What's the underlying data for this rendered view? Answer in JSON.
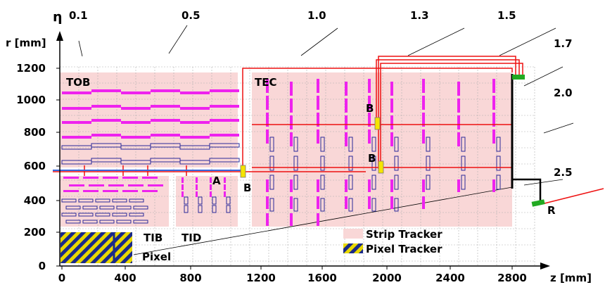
{
  "axes": {
    "eta_symbol": "η",
    "r_label": "r [mm]",
    "z_label": "z [mm]",
    "r_ticks": [
      "1200",
      "1000",
      "800",
      "600",
      "400",
      "200",
      "0"
    ],
    "z_ticks": [
      "0",
      "400",
      "800",
      "1200",
      "1600",
      "2000",
      "2400",
      "2800"
    ]
  },
  "eta_labels": [
    "0.1",
    "0.5",
    "1.0",
    "1.3",
    "1.5",
    "1.7",
    "2.0",
    "2.5"
  ],
  "subdetectors": {
    "tob": "TOB",
    "tec": "TEC",
    "tib": "TIB",
    "tid": "TID",
    "pixel": "Pixel"
  },
  "markers": {
    "a": "A",
    "b_barrel": "B",
    "b_upper": "B",
    "b_lower": "B",
    "r": "R"
  },
  "legend": {
    "strip_tracker": "Strip Tracker",
    "pixel_tracker": "Pixel Tracker"
  },
  "colors": {
    "strip_region": "#f9d7d7",
    "module_magenta": "#ee22ee",
    "module_outline": "#2a2a9a",
    "beam_red": "#ee1111",
    "beam_blue": "#3366dd",
    "alignment_yellow": "#f5e400",
    "green_marker": "#22aa22",
    "grid": "#b0b0b0",
    "pixel_yellow": "#e8d800",
    "pixel_blue": "#1a2a8a"
  }
}
